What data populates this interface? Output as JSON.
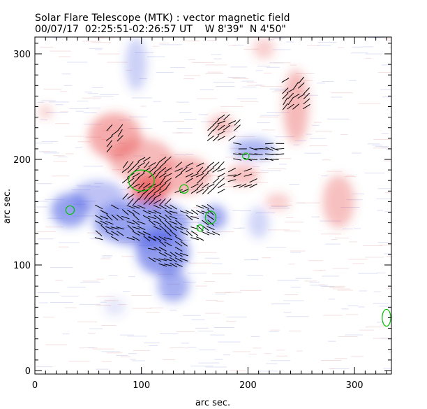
{
  "chart_data": {
    "type": "heatmap",
    "title": "Solar Flare Telescope (MTK) : vector magnetic field",
    "subtitle": {
      "date": "00/07/17",
      "time": "02:25:51-02:26:57 UT",
      "lon": "W 8'39\"",
      "lat": "N 4'50\""
    },
    "xlabel": "arc sec.",
    "ylabel": "arc sec.",
    "xlim": [
      0,
      335
    ],
    "ylim": [
      0,
      317
    ],
    "xticks": [
      0,
      100,
      200,
      300
    ],
    "yticks": [
      0,
      100,
      200,
      300
    ],
    "colors": {
      "positive": "#e84848",
      "negative": "#3a4ee0",
      "contour": "#00c000",
      "vector": "#000000"
    },
    "regions": [
      {
        "polarity": "positive",
        "x": 108,
        "y": 172,
        "rx": 18,
        "ry": 14,
        "strength": 1.0
      },
      {
        "polarity": "positive",
        "x": 75,
        "y": 222,
        "rx": 25,
        "ry": 22,
        "strength": 0.6
      },
      {
        "polarity": "positive",
        "x": 140,
        "y": 185,
        "rx": 25,
        "ry": 18,
        "strength": 0.55
      },
      {
        "polarity": "positive",
        "x": 100,
        "y": 200,
        "rx": 30,
        "ry": 20,
        "strength": 0.5
      },
      {
        "polarity": "positive",
        "x": 175,
        "y": 232,
        "rx": 12,
        "ry": 10,
        "strength": 0.45
      },
      {
        "polarity": "positive",
        "x": 195,
        "y": 185,
        "rx": 15,
        "ry": 10,
        "strength": 0.45
      },
      {
        "polarity": "positive",
        "x": 245,
        "y": 250,
        "rx": 12,
        "ry": 35,
        "strength": 0.5
      },
      {
        "polarity": "positive",
        "x": 215,
        "y": 305,
        "rx": 10,
        "ry": 10,
        "strength": 0.35
      },
      {
        "polarity": "positive",
        "x": 228,
        "y": 160,
        "rx": 12,
        "ry": 8,
        "strength": 0.35
      },
      {
        "polarity": "positive",
        "x": 285,
        "y": 160,
        "rx": 15,
        "ry": 25,
        "strength": 0.45
      },
      {
        "polarity": "positive",
        "x": 10,
        "y": 245,
        "rx": 6,
        "ry": 6,
        "strength": 0.4
      },
      {
        "polarity": "negative",
        "x": 100,
        "y": 140,
        "rx": 45,
        "ry": 22,
        "strength": 0.7
      },
      {
        "polarity": "negative",
        "x": 120,
        "y": 112,
        "rx": 25,
        "ry": 22,
        "strength": 0.75
      },
      {
        "polarity": "negative",
        "x": 130,
        "y": 80,
        "rx": 15,
        "ry": 15,
        "strength": 0.6
      },
      {
        "polarity": "negative",
        "x": 33,
        "y": 152,
        "rx": 18,
        "ry": 16,
        "strength": 0.7
      },
      {
        "polarity": "negative",
        "x": 60,
        "y": 165,
        "rx": 25,
        "ry": 15,
        "strength": 0.45
      },
      {
        "polarity": "negative",
        "x": 168,
        "y": 145,
        "rx": 12,
        "ry": 12,
        "strength": 0.65
      },
      {
        "polarity": "negative",
        "x": 205,
        "y": 210,
        "rx": 20,
        "ry": 10,
        "strength": 0.55
      },
      {
        "polarity": "negative",
        "x": 95,
        "y": 290,
        "rx": 10,
        "ry": 25,
        "strength": 0.35
      },
      {
        "polarity": "negative",
        "x": 210,
        "y": 140,
        "rx": 10,
        "ry": 15,
        "strength": 0.3
      },
      {
        "polarity": "negative",
        "x": 75,
        "y": 60,
        "rx": 10,
        "ry": 8,
        "strength": 0.2
      }
    ],
    "contours": [
      {
        "x": 33,
        "y": 152,
        "rx": 4,
        "ry": 4
      },
      {
        "x": 100,
        "y": 180,
        "rx": 12,
        "ry": 10
      },
      {
        "x": 165,
        "y": 145,
        "rx": 5,
        "ry": 6
      },
      {
        "x": 155,
        "y": 135,
        "rx": 3,
        "ry": 3
      },
      {
        "x": 330,
        "y": 50,
        "rx": 4,
        "ry": 8
      },
      {
        "x": 140,
        "y": 172,
        "rx": 4,
        "ry": 4
      },
      {
        "x": 198,
        "y": 203,
        "rx": 3,
        "ry": 3
      }
    ],
    "vectors_area": [
      {
        "x0": 85,
        "x1": 125,
        "y0": 160,
        "y1": 200,
        "angle": 40
      },
      {
        "x0": 70,
        "x1": 80,
        "y0": 210,
        "y1": 230,
        "angle": 45
      },
      {
        "x0": 60,
        "x1": 170,
        "y0": 125,
        "y1": 155,
        "angle": -30
      },
      {
        "x0": 110,
        "x1": 140,
        "y0": 100,
        "y1": 125,
        "angle": -25
      },
      {
        "x0": 135,
        "x1": 175,
        "y0": 170,
        "y1": 195,
        "angle": 35
      },
      {
        "x0": 190,
        "x1": 230,
        "y0": 200,
        "y1": 215,
        "angle": -10
      },
      {
        "x0": 235,
        "x1": 255,
        "y0": 250,
        "y1": 275,
        "angle": 45
      },
      {
        "x0": 165,
        "x1": 190,
        "y0": 220,
        "y1": 240,
        "angle": 35
      },
      {
        "x0": 185,
        "x1": 205,
        "y0": 175,
        "y1": 190,
        "angle": 15
      }
    ]
  }
}
